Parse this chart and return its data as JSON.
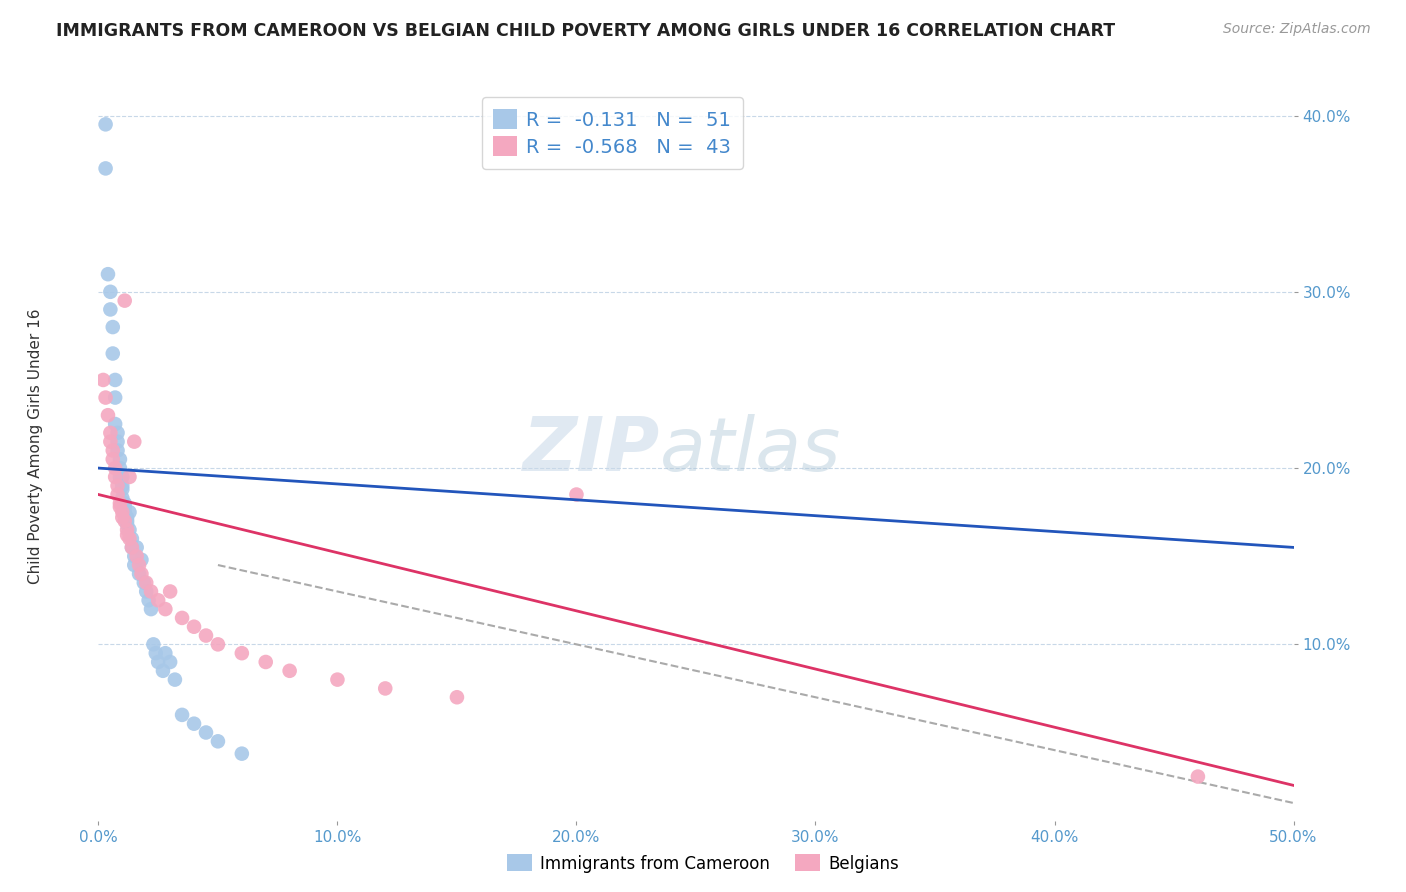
{
  "title": "IMMIGRANTS FROM CAMEROON VS BELGIAN CHILD POVERTY AMONG GIRLS UNDER 16 CORRELATION CHART",
  "source": "Source: ZipAtlas.com",
  "ylabel": "Child Poverty Among Girls Under 16",
  "xlim": [
    0.0,
    0.5
  ],
  "ylim": [
    0.0,
    0.42
  ],
  "xticks": [
    0.0,
    0.1,
    0.2,
    0.3,
    0.4,
    0.5
  ],
  "xtick_labels": [
    "0.0%",
    "10.0%",
    "20.0%",
    "30.0%",
    "40.0%",
    "50.0%"
  ],
  "yticks": [
    0.1,
    0.2,
    0.3,
    0.4
  ],
  "ytick_labels": [
    "10.0%",
    "20.0%",
    "30.0%",
    "40.0%"
  ],
  "color_blue": "#a8c8e8",
  "color_pink": "#f4a8c0",
  "line_blue": "#2255bb",
  "line_pink": "#dd3366",
  "line_dashed": "#aaaaaa",
  "R_blue": -0.131,
  "N_blue": 51,
  "R_pink": -0.568,
  "N_pink": 43,
  "legend_label_blue": "Immigrants from Cameroon",
  "legend_label_pink": "Belgians",
  "watermark_zip": "ZIP",
  "watermark_atlas": "atlas",
  "blue_x": [
    0.003,
    0.003,
    0.004,
    0.005,
    0.005,
    0.006,
    0.006,
    0.007,
    0.007,
    0.007,
    0.008,
    0.008,
    0.008,
    0.009,
    0.009,
    0.009,
    0.01,
    0.01,
    0.01,
    0.01,
    0.011,
    0.011,
    0.011,
    0.012,
    0.012,
    0.012,
    0.013,
    0.013,
    0.014,
    0.014,
    0.015,
    0.015,
    0.016,
    0.017,
    0.018,
    0.019,
    0.02,
    0.021,
    0.022,
    0.023,
    0.024,
    0.025,
    0.027,
    0.028,
    0.03,
    0.032,
    0.035,
    0.04,
    0.045,
    0.05,
    0.06
  ],
  "blue_y": [
    0.395,
    0.37,
    0.31,
    0.3,
    0.29,
    0.28,
    0.265,
    0.25,
    0.24,
    0.225,
    0.22,
    0.215,
    0.21,
    0.205,
    0.2,
    0.195,
    0.195,
    0.19,
    0.188,
    0.183,
    0.18,
    0.178,
    0.175,
    0.172,
    0.17,
    0.168,
    0.175,
    0.165,
    0.16,
    0.155,
    0.15,
    0.145,
    0.155,
    0.14,
    0.148,
    0.135,
    0.13,
    0.125,
    0.12,
    0.1,
    0.095,
    0.09,
    0.085,
    0.095,
    0.09,
    0.08,
    0.06,
    0.055,
    0.05,
    0.045,
    0.038
  ],
  "pink_x": [
    0.002,
    0.003,
    0.004,
    0.005,
    0.005,
    0.006,
    0.006,
    0.007,
    0.007,
    0.008,
    0.008,
    0.009,
    0.009,
    0.01,
    0.01,
    0.011,
    0.011,
    0.012,
    0.012,
    0.013,
    0.013,
    0.014,
    0.015,
    0.016,
    0.017,
    0.018,
    0.02,
    0.022,
    0.025,
    0.028,
    0.03,
    0.035,
    0.04,
    0.045,
    0.05,
    0.06,
    0.07,
    0.08,
    0.1,
    0.12,
    0.15,
    0.2,
    0.46
  ],
  "pink_y": [
    0.25,
    0.24,
    0.23,
    0.22,
    0.215,
    0.21,
    0.205,
    0.2,
    0.195,
    0.19,
    0.185,
    0.18,
    0.178,
    0.175,
    0.172,
    0.295,
    0.17,
    0.165,
    0.162,
    0.16,
    0.195,
    0.155,
    0.215,
    0.15,
    0.145,
    0.14,
    0.135,
    0.13,
    0.125,
    0.12,
    0.13,
    0.115,
    0.11,
    0.105,
    0.1,
    0.095,
    0.09,
    0.085,
    0.08,
    0.075,
    0.07,
    0.185,
    0.025
  ],
  "blue_line_x0": 0.0,
  "blue_line_y0": 0.2,
  "blue_line_x1": 0.5,
  "blue_line_y1": 0.155,
  "pink_line_x0": 0.0,
  "pink_line_y0": 0.185,
  "pink_line_x1": 0.5,
  "pink_line_y1": 0.02,
  "dash_line_x0": 0.05,
  "dash_line_y0": 0.145,
  "dash_line_x1": 0.5,
  "dash_line_y1": 0.01
}
